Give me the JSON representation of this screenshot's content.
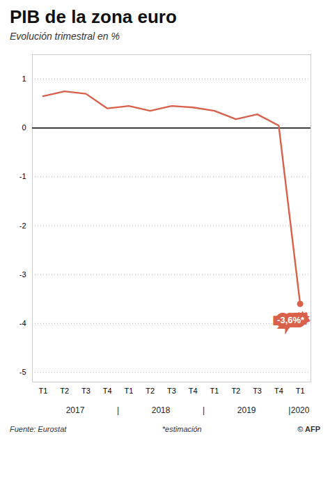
{
  "chart_data": {
    "type": "line",
    "title": "PIB de la zona euro",
    "subtitle": "Evolución trimestral en %",
    "categories": [
      "T1",
      "T2",
      "T3",
      "T4",
      "T1",
      "T2",
      "T3",
      "T4",
      "T1",
      "T2",
      "T3",
      "T4",
      "T1"
    ],
    "values": [
      0.65,
      0.75,
      0.7,
      0.4,
      0.45,
      0.35,
      0.45,
      0.42,
      0.35,
      0.18,
      0.28,
      0.05,
      -3.6
    ],
    "color": "#d9604a",
    "ylim": [
      -5.2,
      1.5
    ],
    "yticks": [
      1,
      0,
      -1,
      -2,
      -3,
      -4,
      -5
    ],
    "grid": true,
    "data_labels": true,
    "value_labels": [
      null,
      null,
      null,
      null,
      null,
      null,
      null,
      null,
      null,
      null,
      null,
      null,
      "-3,6%*"
    ],
    "x_group_labels": [
      {
        "label": "2017",
        "x": 1.5
      },
      {
        "label": "|",
        "x": 3.5
      },
      {
        "label": "2018",
        "x": 5.5
      },
      {
        "label": "|",
        "x": 7.5
      },
      {
        "label": "2019",
        "x": 9.5
      },
      {
        "label": "|",
        "x": 11.5
      },
      {
        "label": "2020",
        "x": 12.0
      }
    ],
    "footer": [
      "Fuente: Eurostat",
      "*estimación",
      "© AFP"
    ]
  }
}
